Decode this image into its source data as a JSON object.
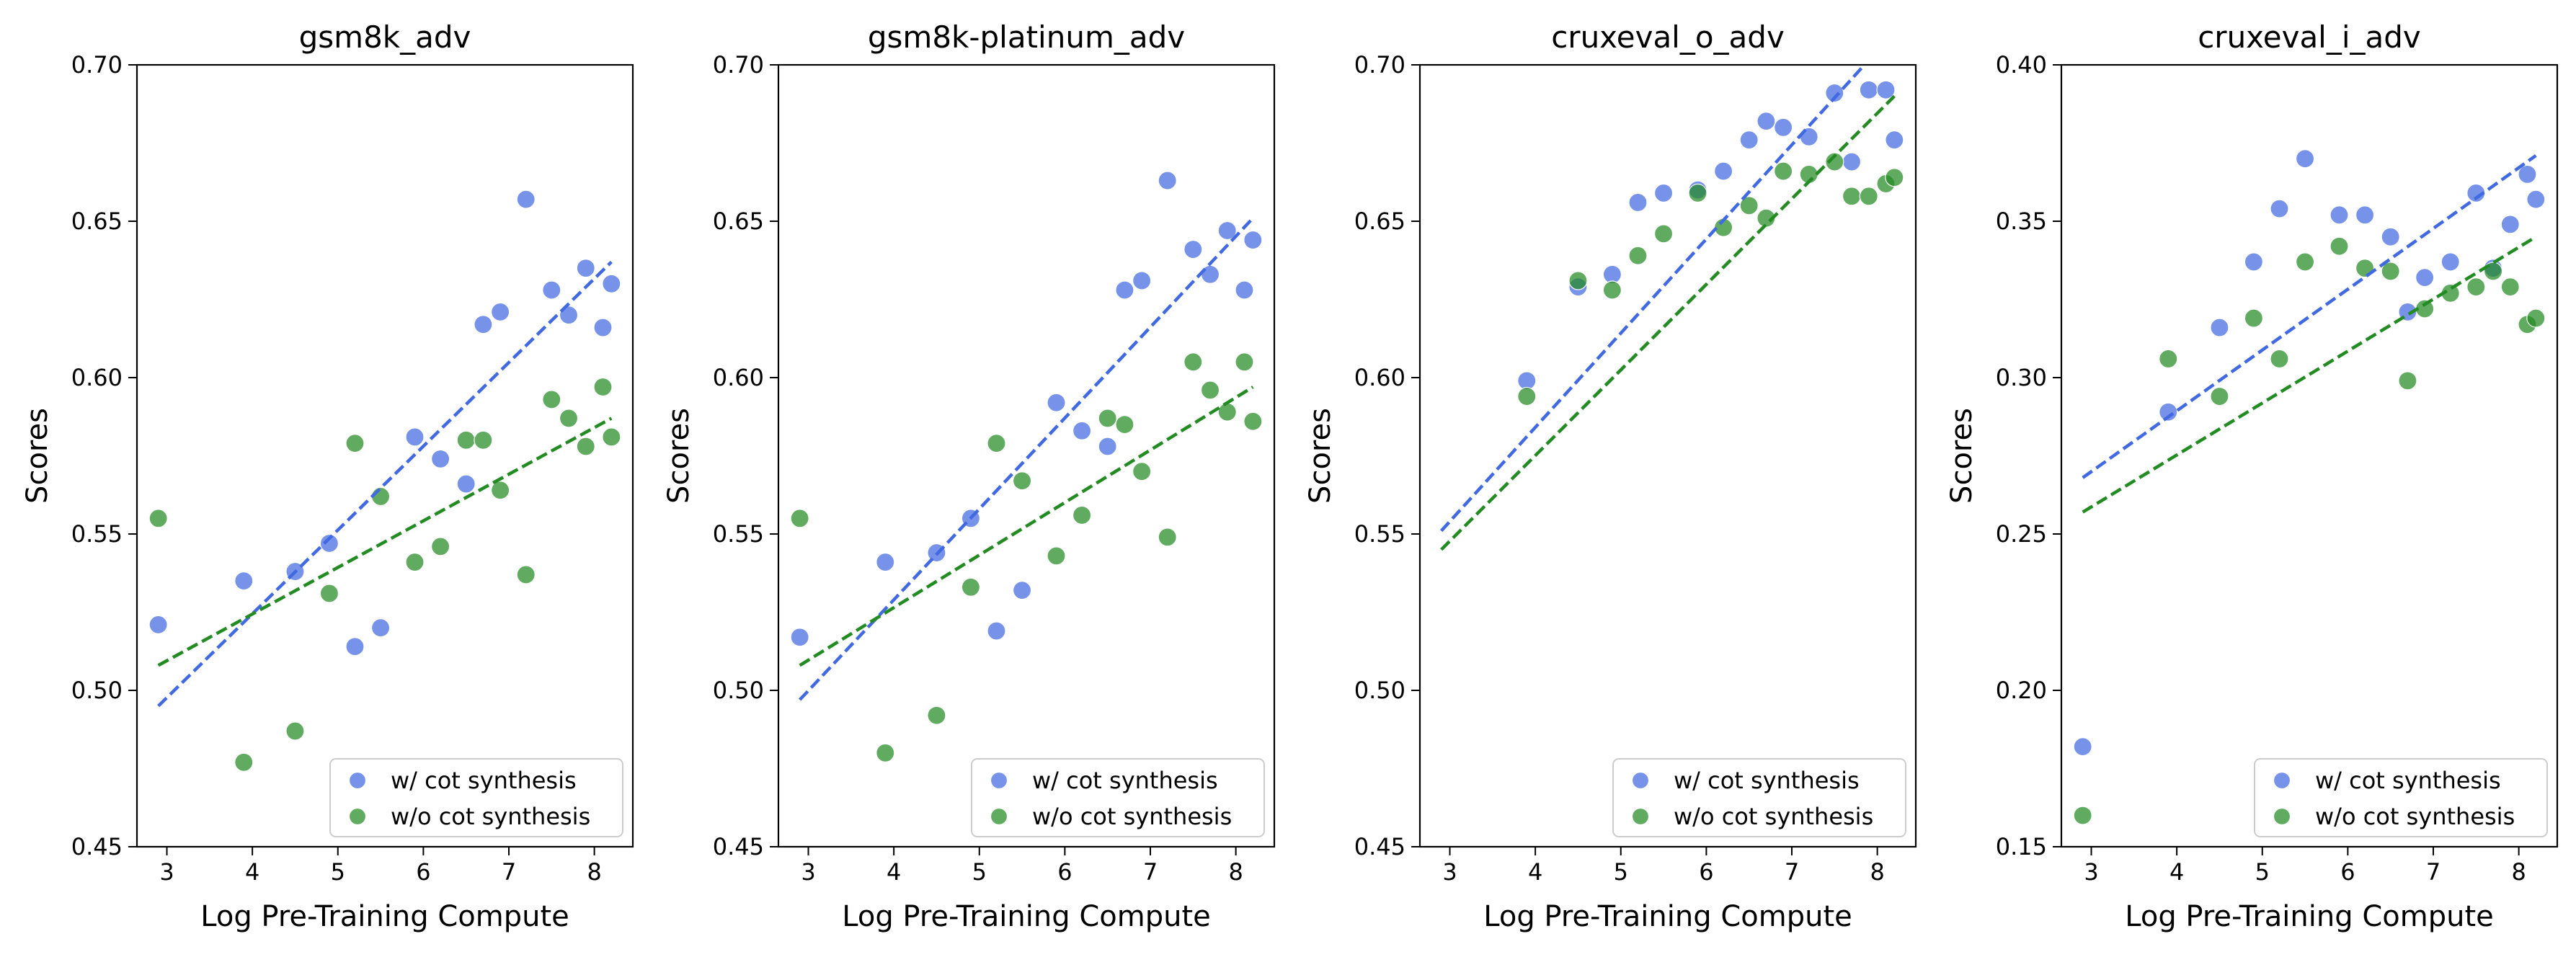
{
  "chart_data": [
    {
      "type": "scatter",
      "title": "gsm8k_adv",
      "xlabel": "Log Pre-Training Compute",
      "ylabel": "Scores",
      "xlim": [
        2.65,
        8.45
      ],
      "ylim": [
        0.45,
        0.7
      ],
      "xticks": [
        "3",
        "4",
        "5",
        "6",
        "7",
        "8"
      ],
      "yticks": [
        "0.45",
        "0.50",
        "0.55",
        "0.60",
        "0.65",
        "0.70"
      ],
      "legend_position": "lower right",
      "grid": false,
      "series": [
        {
          "name": "w/ cot synthesis",
          "color": "#4169E1",
          "points": [
            [
              2.9,
              0.521
            ],
            [
              3.9,
              0.535
            ],
            [
              4.5,
              0.538
            ],
            [
              4.9,
              0.547
            ],
            [
              5.2,
              0.514
            ],
            [
              5.5,
              0.52
            ],
            [
              5.9,
              0.581
            ],
            [
              6.2,
              0.574
            ],
            [
              6.5,
              0.566
            ],
            [
              6.7,
              0.617
            ],
            [
              6.9,
              0.621
            ],
            [
              7.2,
              0.657
            ],
            [
              7.5,
              0.628
            ],
            [
              7.7,
              0.62
            ],
            [
              7.9,
              0.635
            ],
            [
              8.1,
              0.616
            ],
            [
              8.2,
              0.63
            ]
          ],
          "trend": [
            [
              2.9,
              0.495
            ],
            [
              8.2,
              0.637
            ]
          ]
        },
        {
          "name": "w/o cot synthesis",
          "color": "#228B22",
          "points": [
            [
              2.9,
              0.555
            ],
            [
              3.9,
              0.477
            ],
            [
              4.5,
              0.487
            ],
            [
              4.9,
              0.531
            ],
            [
              5.2,
              0.579
            ],
            [
              5.5,
              0.562
            ],
            [
              5.9,
              0.541
            ],
            [
              6.2,
              0.546
            ],
            [
              6.5,
              0.58
            ],
            [
              6.7,
              0.58
            ],
            [
              6.9,
              0.564
            ],
            [
              7.2,
              0.537
            ],
            [
              7.5,
              0.593
            ],
            [
              7.7,
              0.587
            ],
            [
              7.9,
              0.578
            ],
            [
              8.1,
              0.597
            ],
            [
              8.2,
              0.581
            ]
          ],
          "trend": [
            [
              2.9,
              0.508
            ],
            [
              8.2,
              0.587
            ]
          ]
        }
      ]
    },
    {
      "type": "scatter",
      "title": "gsm8k-platinum_adv",
      "xlabel": "Log Pre-Training Compute",
      "ylabel": "Scores",
      "xlim": [
        2.65,
        8.45
      ],
      "ylim": [
        0.45,
        0.7
      ],
      "xticks": [
        "3",
        "4",
        "5",
        "6",
        "7",
        "8"
      ],
      "yticks": [
        "0.45",
        "0.50",
        "0.55",
        "0.60",
        "0.65",
        "0.70"
      ],
      "legend_position": "lower right",
      "grid": false,
      "series": [
        {
          "name": "w/ cot synthesis",
          "color": "#4169E1",
          "points": [
            [
              2.9,
              0.517
            ],
            [
              3.9,
              0.541
            ],
            [
              4.5,
              0.544
            ],
            [
              4.9,
              0.555
            ],
            [
              5.2,
              0.519
            ],
            [
              5.5,
              0.532
            ],
            [
              5.9,
              0.592
            ],
            [
              6.2,
              0.583
            ],
            [
              6.5,
              0.578
            ],
            [
              6.7,
              0.628
            ],
            [
              6.9,
              0.631
            ],
            [
              7.2,
              0.663
            ],
            [
              7.5,
              0.641
            ],
            [
              7.7,
              0.633
            ],
            [
              7.9,
              0.647
            ],
            [
              8.1,
              0.628
            ],
            [
              8.2,
              0.644
            ]
          ],
          "trend": [
            [
              2.9,
              0.497
            ],
            [
              8.2,
              0.651
            ]
          ]
        },
        {
          "name": "w/o cot synthesis",
          "color": "#228B22",
          "points": [
            [
              2.9,
              0.555
            ],
            [
              3.9,
              0.48
            ],
            [
              4.5,
              0.492
            ],
            [
              4.9,
              0.533
            ],
            [
              5.2,
              0.579
            ],
            [
              5.5,
              0.567
            ],
            [
              5.9,
              0.543
            ],
            [
              6.2,
              0.556
            ],
            [
              6.5,
              0.587
            ],
            [
              6.7,
              0.585
            ],
            [
              6.9,
              0.57
            ],
            [
              7.2,
              0.549
            ],
            [
              7.5,
              0.605
            ],
            [
              7.7,
              0.596
            ],
            [
              7.9,
              0.589
            ],
            [
              8.1,
              0.605
            ],
            [
              8.2,
              0.586
            ]
          ],
          "trend": [
            [
              2.9,
              0.508
            ],
            [
              8.2,
              0.597
            ]
          ]
        }
      ]
    },
    {
      "type": "scatter",
      "title": "cruxeval_o_adv",
      "xlabel": "Log Pre-Training Compute",
      "ylabel": "Scores",
      "xlim": [
        2.65,
        8.45
      ],
      "ylim": [
        0.45,
        0.7
      ],
      "xticks": [
        "3",
        "4",
        "5",
        "6",
        "7",
        "8"
      ],
      "yticks": [
        "0.45",
        "0.50",
        "0.55",
        "0.60",
        "0.65",
        "0.70"
      ],
      "legend_position": "lower right",
      "grid": false,
      "series": [
        {
          "name": "w/ cot synthesis",
          "color": "#4169E1",
          "points": [
            [
              3.9,
              0.599
            ],
            [
              4.5,
              0.629
            ],
            [
              4.9,
              0.633
            ],
            [
              5.2,
              0.656
            ],
            [
              5.5,
              0.659
            ],
            [
              5.9,
              0.66
            ],
            [
              6.2,
              0.666
            ],
            [
              6.5,
              0.676
            ],
            [
              6.7,
              0.682
            ],
            [
              6.9,
              0.68
            ],
            [
              7.2,
              0.677
            ],
            [
              7.5,
              0.691
            ],
            [
              7.7,
              0.669
            ],
            [
              7.9,
              0.692
            ],
            [
              8.1,
              0.692
            ],
            [
              8.2,
              0.676
            ]
          ],
          "trend": [
            [
              2.9,
              0.551
            ],
            [
              7.85,
              0.7
            ]
          ]
        },
        {
          "name": "w/o cot synthesis",
          "color": "#228B22",
          "points": [
            [
              3.9,
              0.594
            ],
            [
              4.5,
              0.631
            ],
            [
              4.9,
              0.628
            ],
            [
              5.2,
              0.639
            ],
            [
              5.5,
              0.646
            ],
            [
              5.9,
              0.659
            ],
            [
              6.2,
              0.648
            ],
            [
              6.5,
              0.655
            ],
            [
              6.7,
              0.651
            ],
            [
              6.9,
              0.666
            ],
            [
              7.2,
              0.665
            ],
            [
              7.5,
              0.669
            ],
            [
              7.7,
              0.658
            ],
            [
              7.9,
              0.658
            ],
            [
              8.1,
              0.662
            ],
            [
              8.2,
              0.664
            ]
          ],
          "trend": [
            [
              2.9,
              0.545
            ],
            [
              8.2,
              0.69
            ]
          ]
        }
      ]
    },
    {
      "type": "scatter",
      "title": "cruxeval_i_adv",
      "xlabel": "Log Pre-Training Compute",
      "ylabel": "Scores",
      "xlim": [
        2.65,
        8.45
      ],
      "ylim": [
        0.15,
        0.4
      ],
      "xticks": [
        "3",
        "4",
        "5",
        "6",
        "7",
        "8"
      ],
      "yticks": [
        "0.15",
        "0.20",
        "0.25",
        "0.30",
        "0.35",
        "0.40"
      ],
      "legend_position": "lower right",
      "grid": false,
      "series": [
        {
          "name": "w/ cot synthesis",
          "color": "#4169E1",
          "points": [
            [
              2.9,
              0.182
            ],
            [
              3.9,
              0.289
            ],
            [
              4.5,
              0.316
            ],
            [
              4.9,
              0.337
            ],
            [
              5.2,
              0.354
            ],
            [
              5.5,
              0.37
            ],
            [
              5.9,
              0.352
            ],
            [
              6.2,
              0.352
            ],
            [
              6.5,
              0.345
            ],
            [
              6.7,
              0.321
            ],
            [
              6.9,
              0.332
            ],
            [
              7.2,
              0.337
            ],
            [
              7.5,
              0.359
            ],
            [
              7.7,
              0.335
            ],
            [
              7.9,
              0.349
            ],
            [
              8.1,
              0.365
            ],
            [
              8.2,
              0.357
            ]
          ],
          "trend": [
            [
              2.9,
              0.268
            ],
            [
              8.2,
              0.371
            ]
          ]
        },
        {
          "name": "w/o cot synthesis",
          "color": "#228B22",
          "points": [
            [
              2.9,
              0.16
            ],
            [
              3.9,
              0.306
            ],
            [
              4.5,
              0.294
            ],
            [
              4.9,
              0.319
            ],
            [
              5.2,
              0.306
            ],
            [
              5.5,
              0.337
            ],
            [
              5.9,
              0.342
            ],
            [
              6.2,
              0.335
            ],
            [
              6.5,
              0.334
            ],
            [
              6.7,
              0.299
            ],
            [
              6.9,
              0.322
            ],
            [
              7.2,
              0.327
            ],
            [
              7.5,
              0.329
            ],
            [
              7.7,
              0.334
            ],
            [
              7.9,
              0.329
            ],
            [
              8.1,
              0.317
            ],
            [
              8.2,
              0.319
            ]
          ],
          "trend": [
            [
              2.9,
              0.257
            ],
            [
              8.2,
              0.345
            ]
          ]
        }
      ]
    }
  ]
}
